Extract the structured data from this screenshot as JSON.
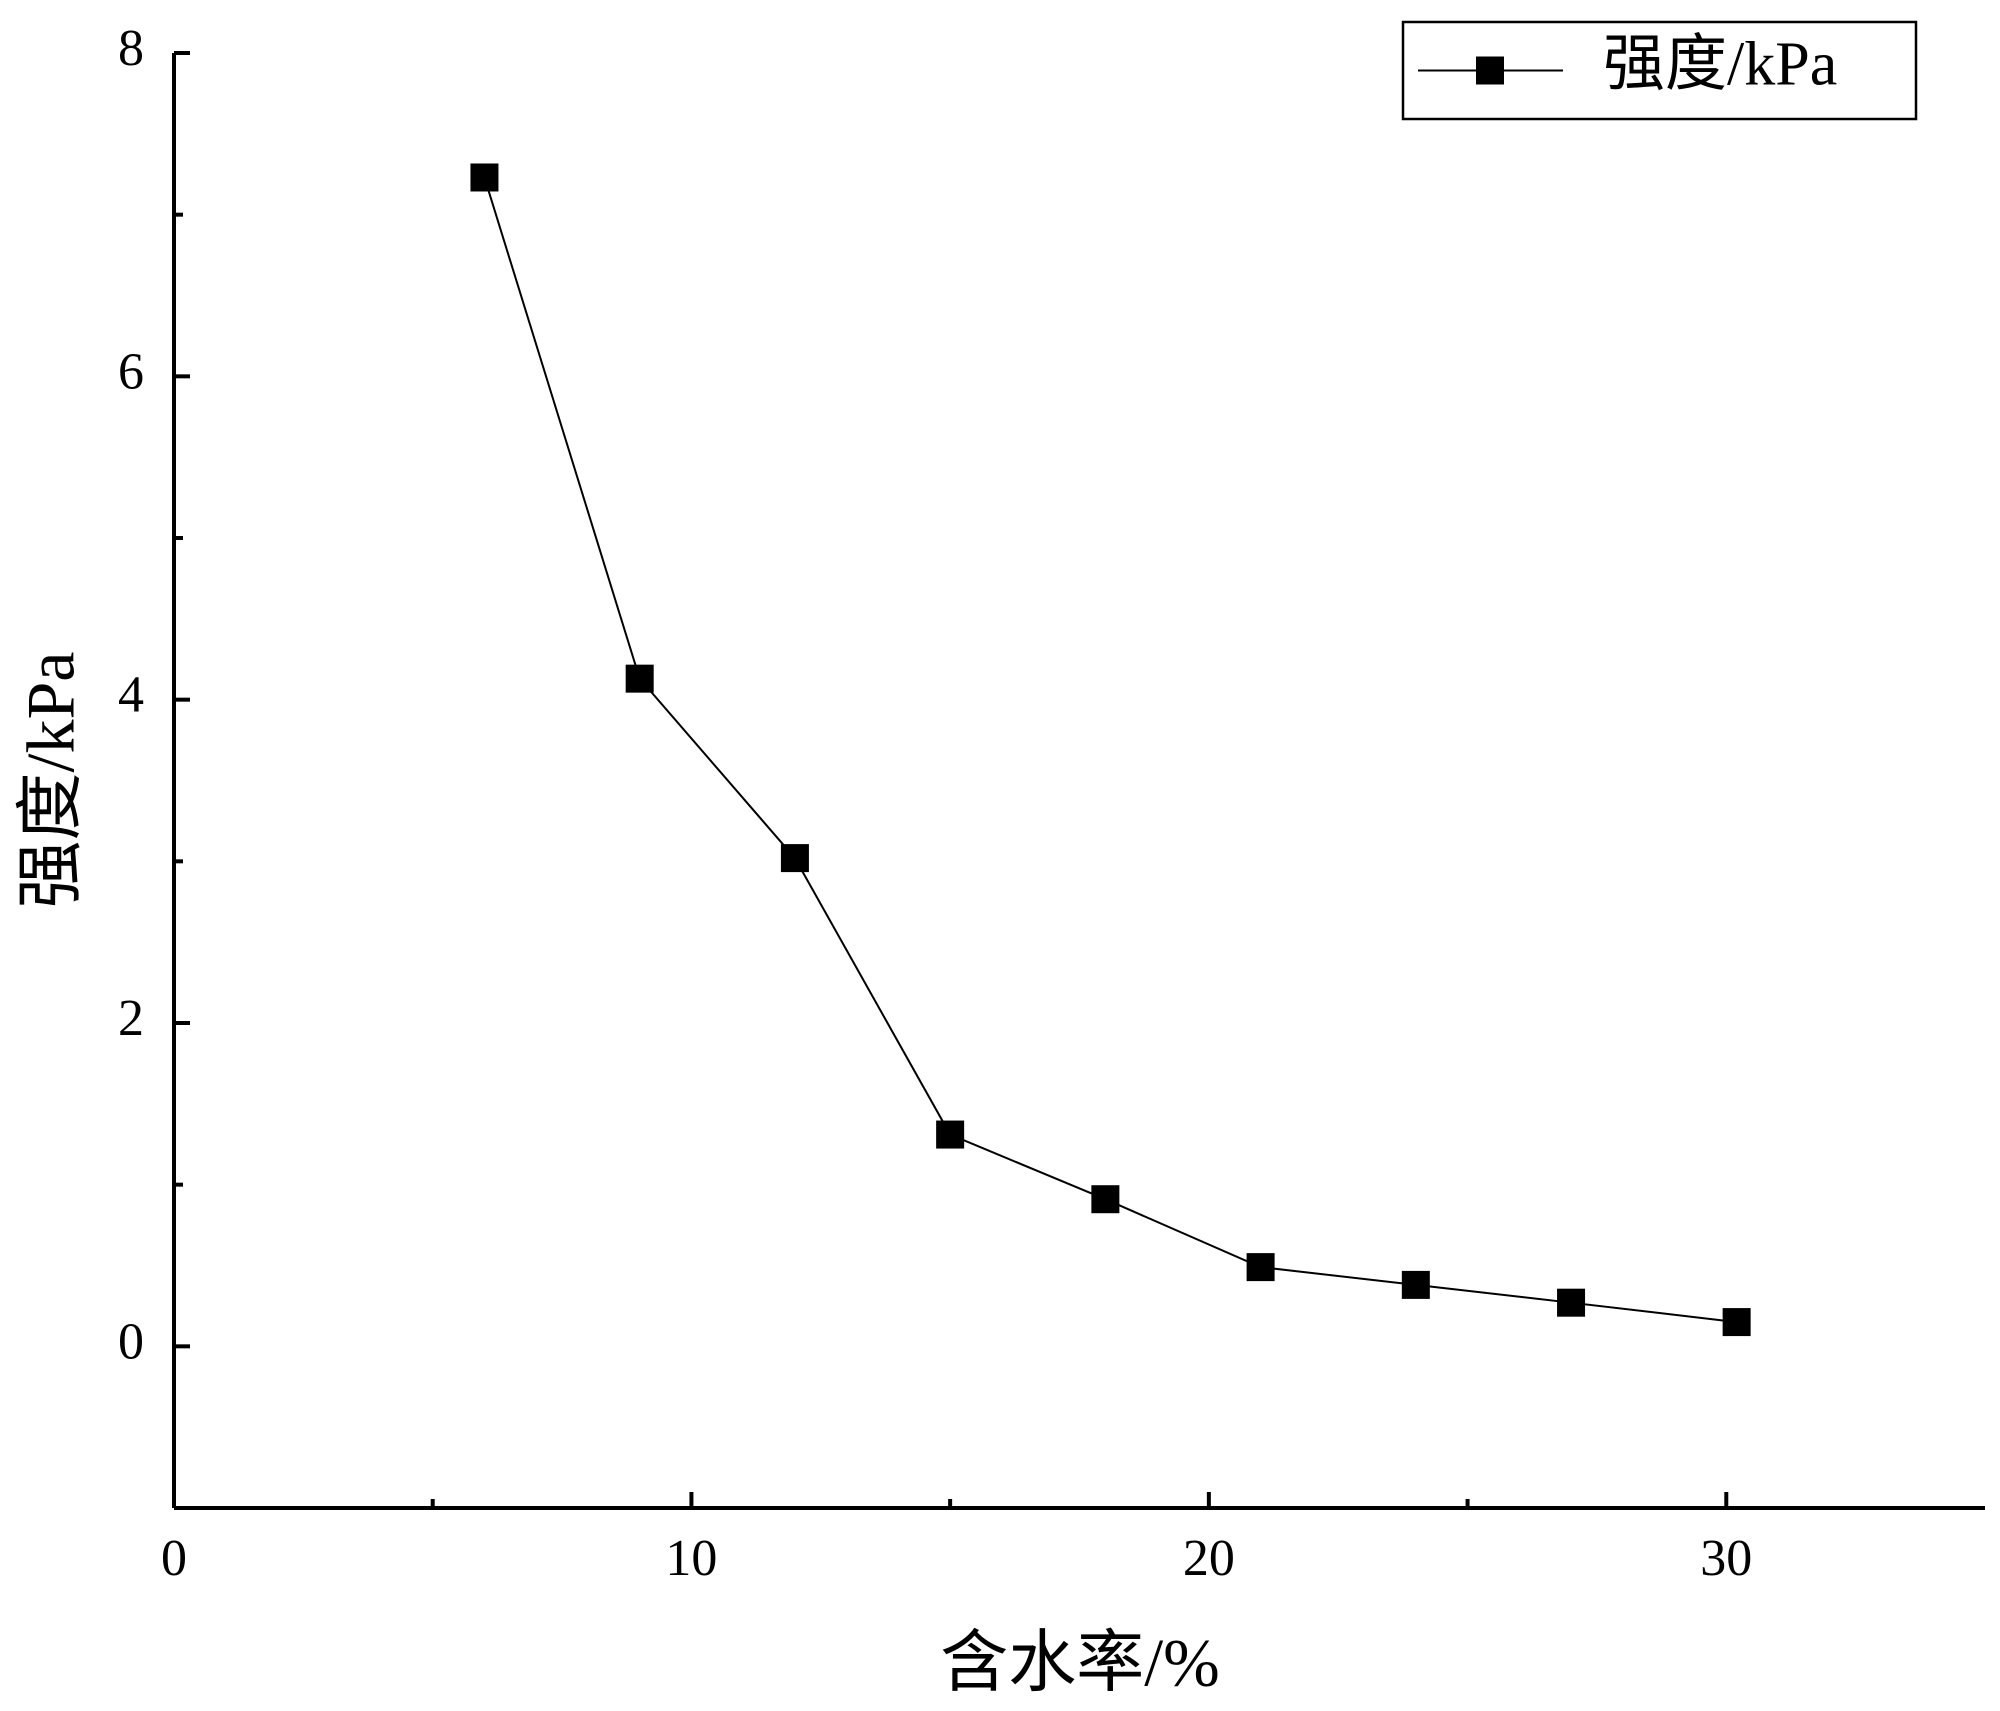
{
  "chart_data": {
    "type": "line",
    "x_label": "含水率/%",
    "y_label": "强度/kPa",
    "series": [
      {
        "name": "强度/kPa",
        "color": "#000000",
        "x": [
          6,
          9,
          12,
          15,
          18,
          21,
          24,
          27,
          30.2
        ],
        "values": [
          7.23,
          4.13,
          3.02,
          1.31,
          0.91,
          0.49,
          0.38,
          0.27,
          0.15
        ]
      }
    ],
    "xlim": [
      0,
      35
    ],
    "xticks": [
      0,
      10,
      20,
      30
    ],
    "xminorticks": [
      5,
      15,
      25
    ],
    "ylim": [
      -1,
      8
    ],
    "yticks": [
      0,
      2,
      4,
      6,
      8
    ],
    "yminorticks": [
      1,
      3,
      5,
      7
    ],
    "grid": false,
    "legend": "upper right",
    "marker": "square"
  }
}
